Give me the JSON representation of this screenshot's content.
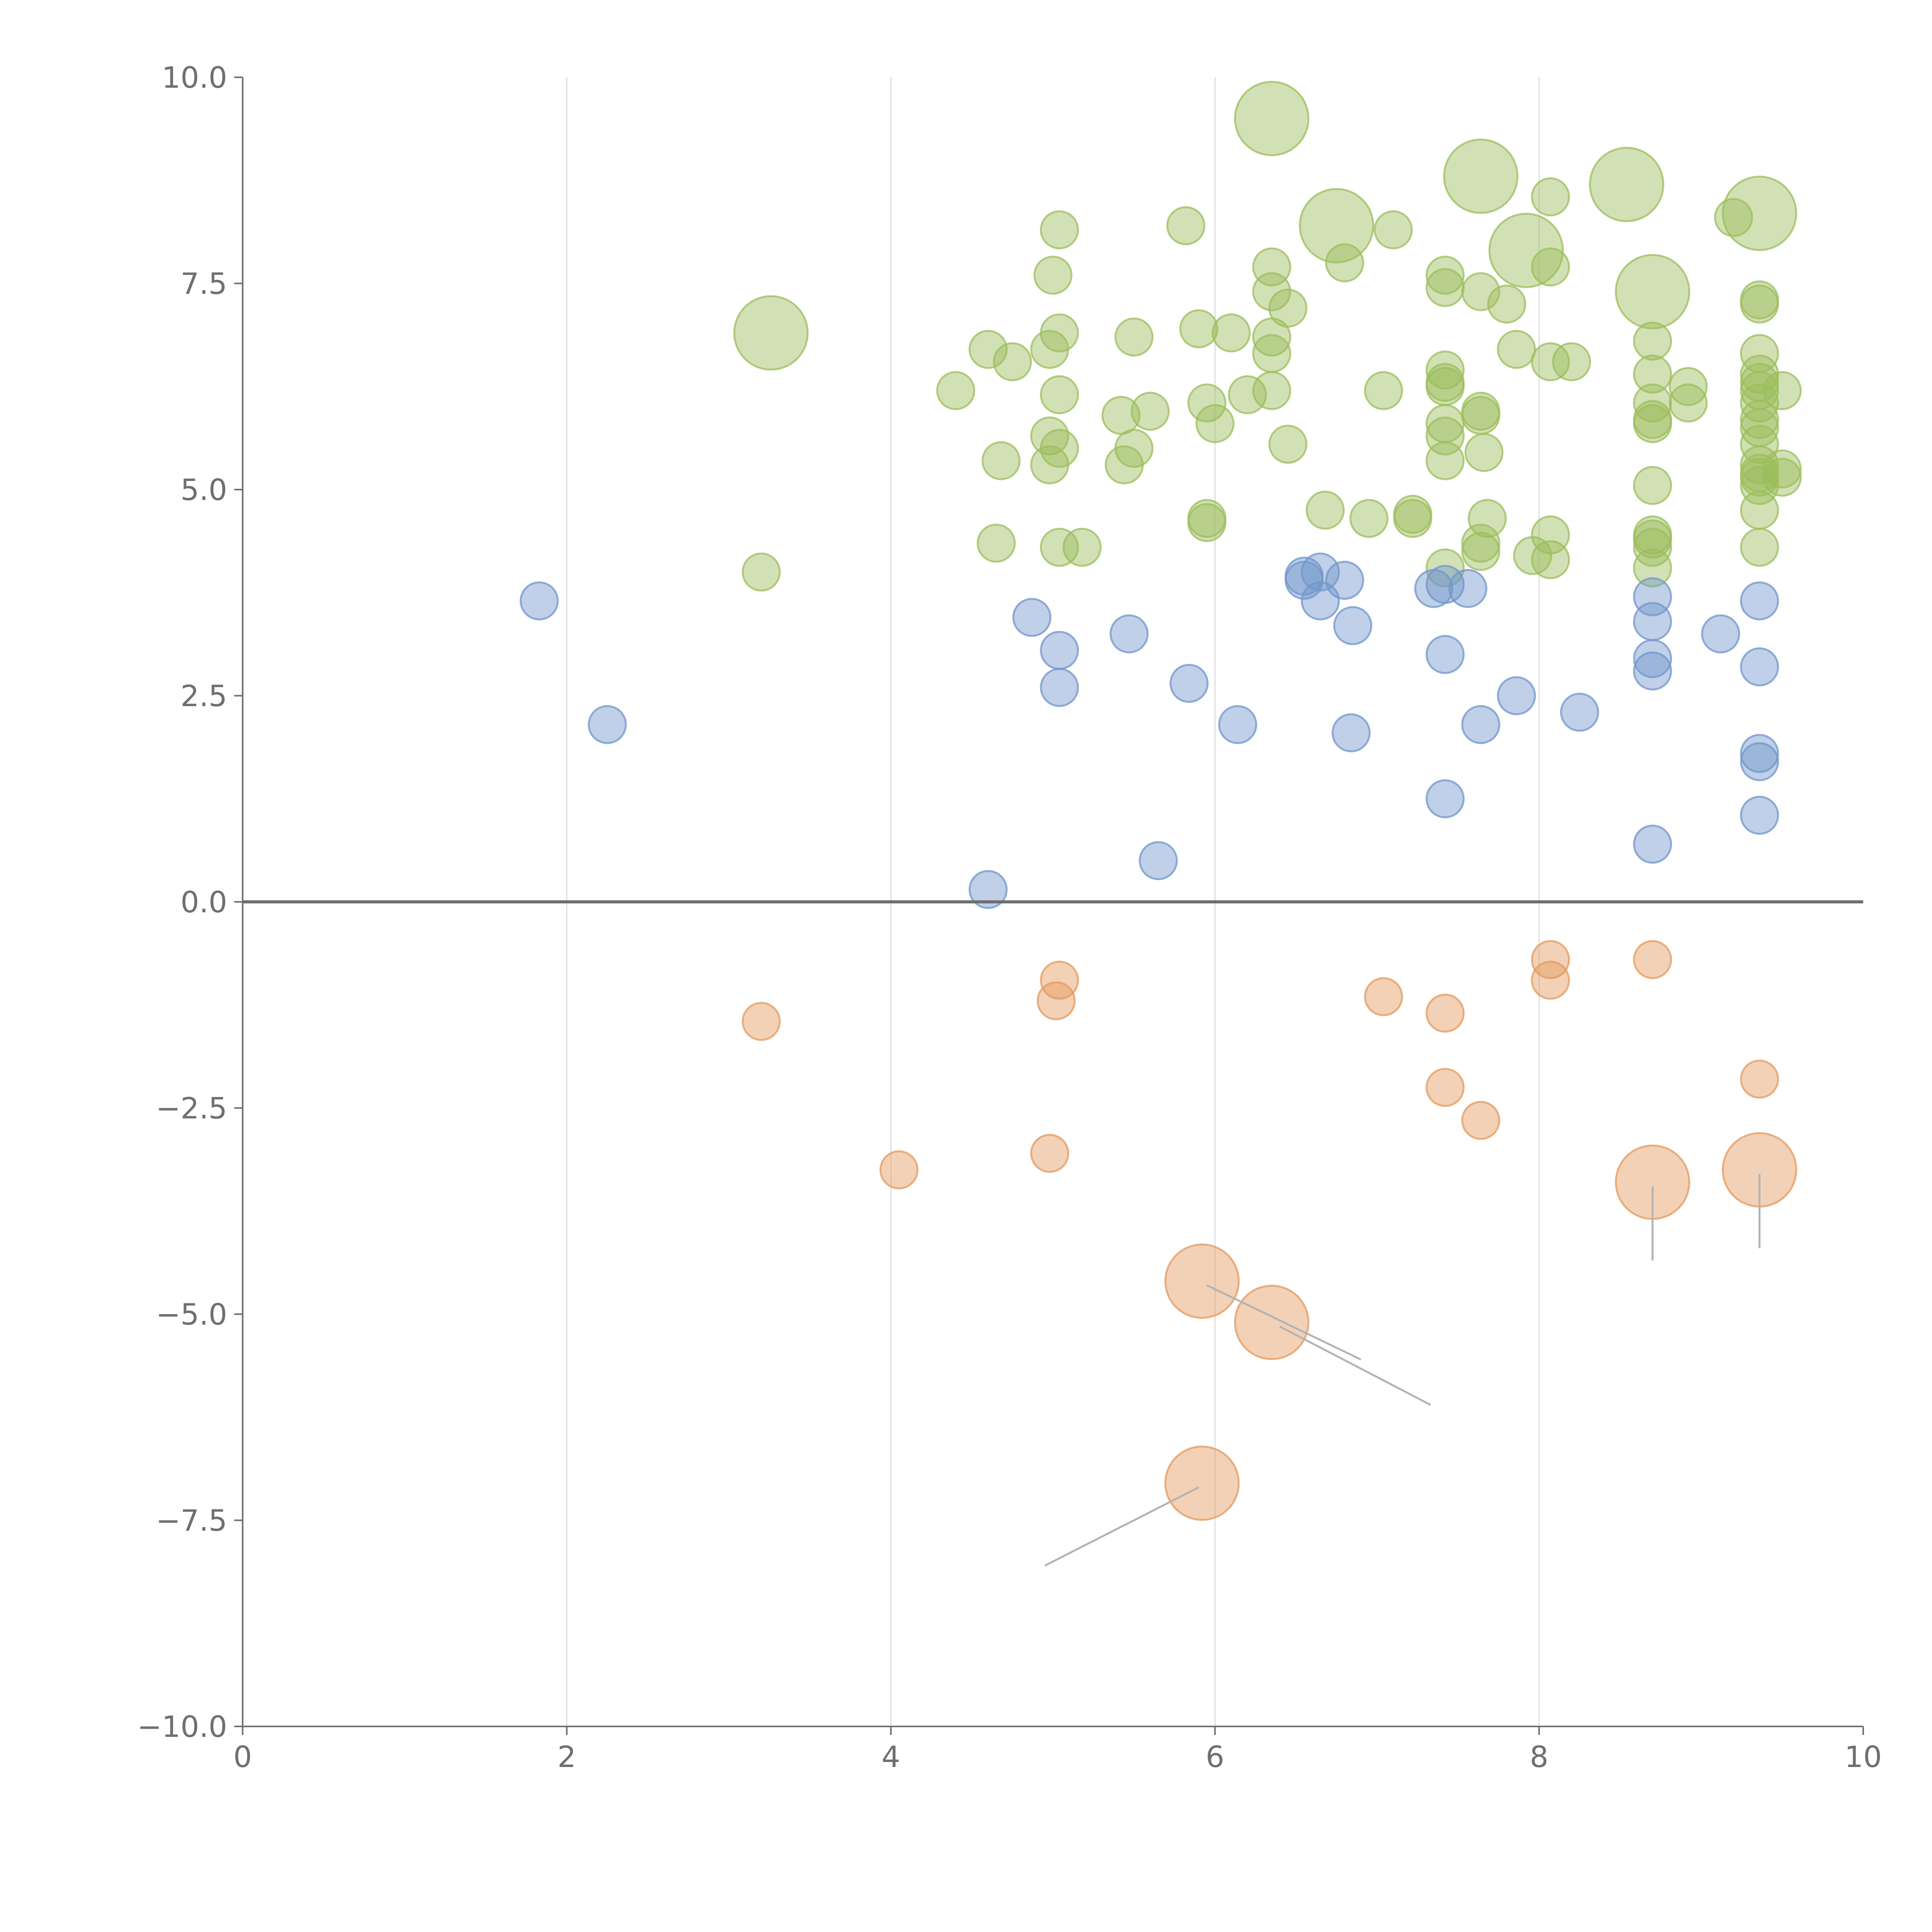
{
  "chart_data": {
    "type": "scatter",
    "title": "",
    "xlabel": "",
    "ylabel": "",
    "xlim": [
      0,
      10
    ],
    "ylim": [
      -10,
      10
    ],
    "xticks": [
      "0",
      "2",
      "4",
      "6",
      "8",
      "10"
    ],
    "yticks": [
      "10.0",
      "7.5",
      "5.0",
      "2.5",
      "0.0",
      "−2.5",
      "−5.0",
      "−7.5",
      "−10.0"
    ],
    "grid": "vertical",
    "zero_line": true,
    "colors": {
      "green": "#9cbd5c",
      "blue": "#7096cb",
      "orange": "#e49a5d",
      "axis": "#6f6f6f",
      "grid": "#dddddd",
      "leader": "#b3b3b3"
    },
    "series": [
      {
        "name": "green",
        "size_scale": "bubble",
        "points": [
          [
            6.35,
            9.5,
            2
          ],
          [
            7.64,
            8.8,
            2
          ],
          [
            8.54,
            8.7,
            2
          ],
          [
            9.36,
            8.35,
            2
          ],
          [
            6.75,
            8.2,
            2
          ],
          [
            7.92,
            7.9,
            2
          ],
          [
            8.7,
            7.4,
            2
          ],
          [
            3.26,
            6.9,
            2
          ],
          [
            8.07,
            8.55,
            1
          ],
          [
            9.2,
            8.3,
            1
          ],
          [
            5.82,
            8.2,
            1
          ],
          [
            5.04,
            8.15,
            1
          ],
          [
            7.1,
            8.15,
            1
          ],
          [
            6.35,
            7.7,
            1
          ],
          [
            6.8,
            7.75,
            1
          ],
          [
            7.42,
            7.6,
            1
          ],
          [
            8.07,
            7.7,
            1
          ],
          [
            5.0,
            7.6,
            1
          ],
          [
            6.35,
            7.4,
            1
          ],
          [
            7.42,
            7.45,
            1
          ],
          [
            7.64,
            7.4,
            1
          ],
          [
            6.45,
            7.2,
            1
          ],
          [
            7.8,
            7.25,
            1
          ],
          [
            9.36,
            7.3,
            1
          ],
          [
            9.36,
            7.25,
            1
          ],
          [
            5.04,
            6.9,
            1
          ],
          [
            5.9,
            6.95,
            1
          ],
          [
            6.1,
            6.9,
            1
          ],
          [
            5.5,
            6.85,
            1
          ],
          [
            6.35,
            6.85,
            1
          ],
          [
            8.7,
            6.8,
            1
          ],
          [
            4.6,
            6.7,
            1
          ],
          [
            4.98,
            6.7,
            1
          ],
          [
            6.35,
            6.65,
            1
          ],
          [
            7.86,
            6.7,
            1
          ],
          [
            9.36,
            6.65,
            1
          ],
          [
            4.75,
            6.55,
            1
          ],
          [
            8.07,
            6.55,
            1
          ],
          [
            8.2,
            6.55,
            1
          ],
          [
            7.42,
            6.45,
            1
          ],
          [
            8.7,
            6.4,
            1
          ],
          [
            9.36,
            6.4,
            1
          ],
          [
            4.4,
            6.2,
            1
          ],
          [
            5.04,
            6.15,
            1
          ],
          [
            6.2,
            6.15,
            1
          ],
          [
            6.35,
            6.2,
            1
          ],
          [
            7.04,
            6.2,
            1
          ],
          [
            7.42,
            6.3,
            1
          ],
          [
            7.42,
            6.25,
            1
          ],
          [
            8.92,
            6.25,
            1
          ],
          [
            9.36,
            6.3,
            1
          ],
          [
            9.36,
            6.2,
            1
          ],
          [
            9.5,
            6.2,
            1
          ],
          [
            5.95,
            6.05,
            1
          ],
          [
            8.7,
            6.05,
            1
          ],
          [
            8.92,
            6.05,
            1
          ],
          [
            9.36,
            6.05,
            1
          ],
          [
            5.6,
            5.95,
            1
          ],
          [
            5.42,
            5.9,
            1
          ],
          [
            7.64,
            5.95,
            1
          ],
          [
            7.64,
            5.9,
            1
          ],
          [
            9.36,
            5.85,
            1
          ],
          [
            6.0,
            5.8,
            1
          ],
          [
            7.42,
            5.8,
            1
          ],
          [
            8.7,
            5.85,
            1
          ],
          [
            8.7,
            5.8,
            1
          ],
          [
            9.36,
            5.75,
            1
          ],
          [
            4.98,
            5.65,
            1
          ],
          [
            7.42,
            5.65,
            1
          ],
          [
            5.04,
            5.5,
            1
          ],
          [
            5.5,
            5.5,
            1
          ],
          [
            6.45,
            5.55,
            1
          ],
          [
            7.66,
            5.45,
            1
          ],
          [
            9.36,
            5.55,
            1
          ],
          [
            4.68,
            5.35,
            1
          ],
          [
            4.98,
            5.3,
            1
          ],
          [
            5.44,
            5.3,
            1
          ],
          [
            7.42,
            5.35,
            1
          ],
          [
            9.36,
            5.3,
            1
          ],
          [
            9.36,
            5.2,
            1
          ],
          [
            9.5,
            5.25,
            1
          ],
          [
            9.5,
            5.15,
            1
          ],
          [
            9.36,
            5.15,
            1
          ],
          [
            9.36,
            5.05,
            1
          ],
          [
            8.7,
            5.05,
            1
          ],
          [
            6.68,
            4.75,
            1
          ],
          [
            6.95,
            4.65,
            1
          ],
          [
            7.22,
            4.7,
            1
          ],
          [
            7.22,
            4.65,
            1
          ],
          [
            5.95,
            4.65,
            1
          ],
          [
            5.95,
            4.6,
            1
          ],
          [
            7.68,
            4.65,
            1
          ],
          [
            9.36,
            4.75,
            1
          ],
          [
            8.07,
            4.45,
            1
          ],
          [
            8.7,
            4.45,
            1
          ],
          [
            8.7,
            4.4,
            1
          ],
          [
            4.65,
            4.35,
            1
          ],
          [
            5.04,
            4.3,
            1
          ],
          [
            5.18,
            4.3,
            1
          ],
          [
            7.64,
            4.35,
            1
          ],
          [
            7.64,
            4.25,
            1
          ],
          [
            8.7,
            4.3,
            1
          ],
          [
            9.36,
            4.3,
            1
          ],
          [
            7.96,
            4.2,
            1
          ],
          [
            8.07,
            4.15,
            1
          ],
          [
            3.2,
            4.0,
            1
          ],
          [
            7.42,
            4.05,
            1
          ],
          [
            8.7,
            4.05,
            1
          ]
        ]
      },
      {
        "name": "blue",
        "size_scale": "bubble",
        "points": [
          [
            1.83,
            3.65,
            1
          ],
          [
            6.55,
            3.95,
            1
          ],
          [
            6.65,
            4.0,
            1
          ],
          [
            6.55,
            3.9,
            1
          ],
          [
            6.8,
            3.9,
            1
          ],
          [
            6.65,
            3.65,
            1
          ],
          [
            7.35,
            3.8,
            1
          ],
          [
            7.42,
            3.85,
            1
          ],
          [
            7.56,
            3.8,
            1
          ],
          [
            8.7,
            3.7,
            1
          ],
          [
            9.36,
            3.65,
            1
          ],
          [
            4.87,
            3.45,
            1
          ],
          [
            6.85,
            3.35,
            1
          ],
          [
            8.7,
            3.4,
            1
          ],
          [
            5.47,
            3.25,
            1
          ],
          [
            9.12,
            3.25,
            1
          ],
          [
            5.04,
            3.05,
            1
          ],
          [
            7.42,
            3.0,
            1
          ],
          [
            8.7,
            2.95,
            1
          ],
          [
            8.7,
            2.8,
            1
          ],
          [
            9.36,
            2.85,
            1
          ],
          [
            5.84,
            2.65,
            1
          ],
          [
            5.04,
            2.6,
            1
          ],
          [
            7.86,
            2.5,
            1
          ],
          [
            8.25,
            2.3,
            1
          ],
          [
            2.25,
            2.15,
            1
          ],
          [
            6.14,
            2.15,
            1
          ],
          [
            7.64,
            2.15,
            1
          ],
          [
            6.84,
            2.05,
            1
          ],
          [
            9.36,
            1.8,
            1
          ],
          [
            9.36,
            1.7,
            1
          ],
          [
            7.42,
            1.25,
            1
          ],
          [
            9.36,
            1.05,
            1
          ],
          [
            8.7,
            0.7,
            1
          ],
          [
            5.65,
            0.5,
            1
          ],
          [
            4.6,
            0.15,
            1
          ]
        ]
      },
      {
        "name": "orange",
        "size_scale": "bubble",
        "points": [
          [
            8.07,
            -0.7,
            1
          ],
          [
            8.7,
            -0.7,
            1
          ],
          [
            5.04,
            -0.95,
            1
          ],
          [
            8.07,
            -0.95,
            1
          ],
          [
            7.04,
            -1.15,
            1
          ],
          [
            5.02,
            -1.2,
            1
          ],
          [
            7.42,
            -1.35,
            1
          ],
          [
            3.2,
            -1.45,
            1
          ],
          [
            9.36,
            -2.15,
            1
          ],
          [
            7.42,
            -2.25,
            1
          ],
          [
            7.64,
            -2.65,
            1
          ],
          [
            4.98,
            -3.05,
            1
          ],
          [
            4.05,
            -3.25,
            1
          ],
          [
            8.7,
            -3.4,
            2
          ],
          [
            9.36,
            -3.25,
            2
          ],
          [
            5.92,
            -4.6,
            2
          ],
          [
            6.35,
            -5.1,
            2
          ],
          [
            5.92,
            -7.05,
            2
          ]
        ]
      }
    ],
    "annotations": [
      {
        "point": [
          5.95,
          -4.65
        ],
        "text_at": [
          6.9,
          -5.55
        ]
      },
      {
        "point": [
          6.4,
          -5.15
        ],
        "text_at": [
          7.33,
          -6.1
        ]
      },
      {
        "point": [
          5.9,
          -7.1
        ],
        "text_at": [
          4.95,
          -8.05
        ]
      },
      {
        "point": [
          8.7,
          -3.45
        ],
        "text_at": [
          8.7,
          -4.35
        ]
      },
      {
        "point": [
          9.36,
          -3.3
        ],
        "text_at": [
          9.36,
          -4.2
        ]
      }
    ]
  }
}
